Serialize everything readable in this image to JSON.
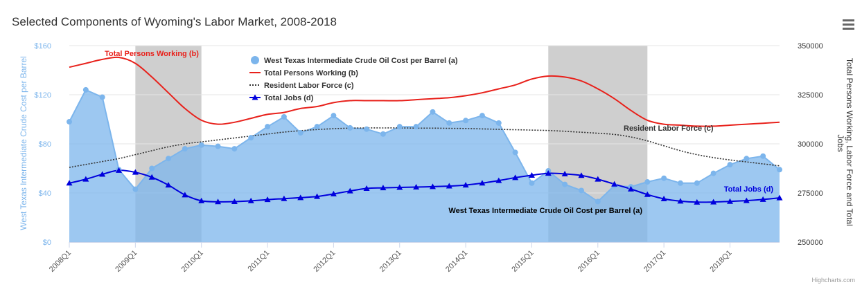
{
  "chart_data": {
    "type": "line",
    "title": "Selected Components of Wyoming's Labor Market, 2008-2018",
    "y_left": {
      "label": "West Texas Intermediate Crude Cost per Barrel",
      "range": [
        0,
        160
      ],
      "ticks": [
        0,
        40,
        80,
        120,
        160
      ],
      "tick_labels": [
        "$0",
        "$40",
        "$80",
        "$120",
        "$160"
      ]
    },
    "y_right": {
      "label": "Total Persons Working, Labor Force and Total Jobs",
      "range": [
        250000,
        350000
      ],
      "ticks": [
        250000,
        275000,
        300000,
        325000,
        350000
      ],
      "tick_labels": [
        "250000",
        "275000",
        "300000",
        "325000",
        "350000"
      ]
    },
    "x": {
      "labels": [
        "2008Q1",
        "2008Q2",
        "2008Q3",
        "2008Q4",
        "2009Q1",
        "2009Q2",
        "2009Q3",
        "2009Q4",
        "2010Q1",
        "2010Q2",
        "2010Q3",
        "2010Q4",
        "2011Q1",
        "2011Q2",
        "2011Q3",
        "2011Q4",
        "2012Q1",
        "2012Q2",
        "2012Q3",
        "2012Q4",
        "2013Q1",
        "2013Q2",
        "2013Q3",
        "2013Q4",
        "2014Q1",
        "2014Q2",
        "2014Q3",
        "2014Q4",
        "2015Q1",
        "2015Q2",
        "2015Q3",
        "2015Q4",
        "2016Q1",
        "2016Q2",
        "2016Q3",
        "2016Q4",
        "2017Q1",
        "2017Q2",
        "2017Q3",
        "2017Q4",
        "2018Q1",
        "2018Q2",
        "2018Q3",
        "2018Q4"
      ],
      "tick_labels": [
        "2008Q1",
        "2009Q1",
        "2010Q1",
        "2011Q1",
        "2012Q1",
        "2013Q1",
        "2014Q1",
        "2015Q1",
        "2016Q1",
        "2017Q1",
        "2018Q1"
      ]
    },
    "shaded_regions": [
      {
        "from": 4,
        "to": 8
      },
      {
        "from": 29,
        "to": 35
      }
    ],
    "series": [
      {
        "name": "West Texas Intermediate Crude Oil Cost per Barrel (a)",
        "type": "area",
        "axis": "left",
        "color": "#7cb5ec",
        "values": [
          98,
          124,
          118,
          59,
          43,
          60,
          68,
          76,
          79,
          78,
          76,
          85,
          94,
          102,
          89,
          94,
          103,
          93,
          92,
          88,
          94,
          94,
          106,
          97,
          99,
          103,
          97,
          73,
          48,
          58,
          47,
          42,
          33,
          46,
          45,
          49,
          52,
          48,
          48,
          56,
          63,
          68,
          70,
          59
        ]
      },
      {
        "name": "Total Persons Working (b)",
        "type": "line",
        "axis": "right",
        "color": "#e8211b",
        "values": [
          339000,
          341000,
          343000,
          344000,
          341000,
          334000,
          326000,
          318000,
          312000,
          310000,
          311000,
          313000,
          315000,
          316000,
          318000,
          319000,
          321000,
          322000,
          322000,
          322000,
          322000,
          322500,
          323000,
          323500,
          324500,
          326000,
          328000,
          330000,
          333000,
          334500,
          334000,
          332000,
          328000,
          323000,
          317000,
          312000,
          310000,
          309500,
          309000,
          309000,
          309500,
          310000,
          310500,
          311000
        ]
      },
      {
        "name": "Resident Labor Force (c)",
        "type": "line",
        "dash": true,
        "axis": "right",
        "color": "#333333",
        "values": [
          288000,
          289500,
          291000,
          292500,
          294500,
          296500,
          298500,
          300000,
          301000,
          302000,
          303000,
          304000,
          305000,
          306000,
          306700,
          307300,
          307700,
          308000,
          308100,
          308100,
          308100,
          308000,
          308000,
          307900,
          307800,
          307600,
          307400,
          307200,
          307000,
          306800,
          306400,
          305900,
          305400,
          304800,
          303500,
          301500,
          299000,
          296500,
          294500,
          293000,
          291800,
          290800,
          289800,
          288800
        ]
      },
      {
        "name": "Total Jobs (d)",
        "type": "line",
        "marker": "triangle",
        "axis": "right",
        "color": "#0000dd",
        "values": [
          280000,
          282000,
          284500,
          286500,
          285500,
          283000,
          279000,
          274000,
          271000,
          270500,
          270600,
          271000,
          271600,
          272100,
          272600,
          273200,
          274500,
          276000,
          277300,
          277600,
          277800,
          278000,
          278200,
          278500,
          279000,
          280000,
          281300,
          282800,
          284000,
          285000,
          284700,
          283900,
          282000,
          279500,
          277000,
          274200,
          272000,
          270800,
          270300,
          270400,
          270700,
          271100,
          271700,
          272500
        ]
      }
    ],
    "annotations": [
      {
        "text": "Total Persons Working (b)",
        "color": "#e8211b"
      },
      {
        "text": "Resident Labor Force (c)",
        "color": "#333333"
      },
      {
        "text": "Total Jobs (d)",
        "color": "#0000dd"
      },
      {
        "text": "West Texas Intermediate Crude Oil Cost per Barrel (a)",
        "color": "#000000"
      }
    ],
    "legend": "top-center",
    "grid": true
  },
  "menu_icon": "hamburger-menu-icon",
  "credits": "Highcharts.com"
}
